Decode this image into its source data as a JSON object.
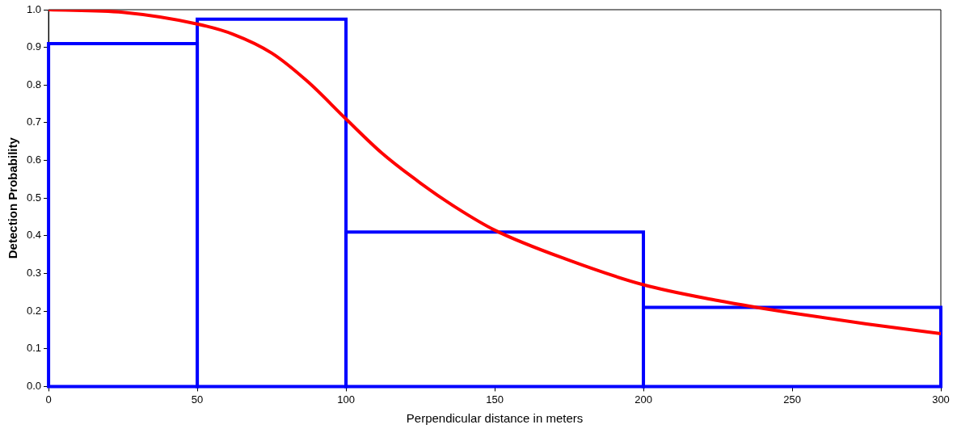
{
  "chart_data": {
    "type": "histogram",
    "xlabel": "Perpendicular distance in meters",
    "ylabel": "Detection Probability",
    "xlim": [
      0,
      300
    ],
    "xticks": [
      0,
      50,
      100,
      150,
      200,
      250,
      300
    ],
    "ylim": [
      0,
      1
    ],
    "yticks": [
      {
        "value": 0,
        "label": "0.0"
      },
      0.1,
      0.2,
      0.3,
      0.4,
      0.5,
      0.6,
      0.7,
      0.8,
      0.9,
      {
        "value": 1,
        "label": "1.0"
      }
    ],
    "grid": false,
    "legend": false,
    "series": [
      {
        "color": "#0000ff",
        "bins": [
          0,
          50,
          100,
          200,
          300
        ],
        "values": [
          0.91,
          0.975,
          0.41,
          0.21
        ]
      },
      {
        "type": "line",
        "color": "#ff0000",
        "marker": "none",
        "x": [
          0,
          25,
          50,
          62,
          75,
          87,
          100,
          112,
          125,
          137,
          150,
          175,
          200,
          225,
          238,
          250,
          275,
          300
        ],
        "values": [
          1.0,
          0.993,
          0.962,
          0.935,
          0.885,
          0.81,
          0.71,
          0.62,
          0.54,
          0.475,
          0.415,
          0.335,
          0.27,
          0.228,
          0.21,
          0.195,
          0.166,
          0.14
        ]
      }
    ]
  }
}
